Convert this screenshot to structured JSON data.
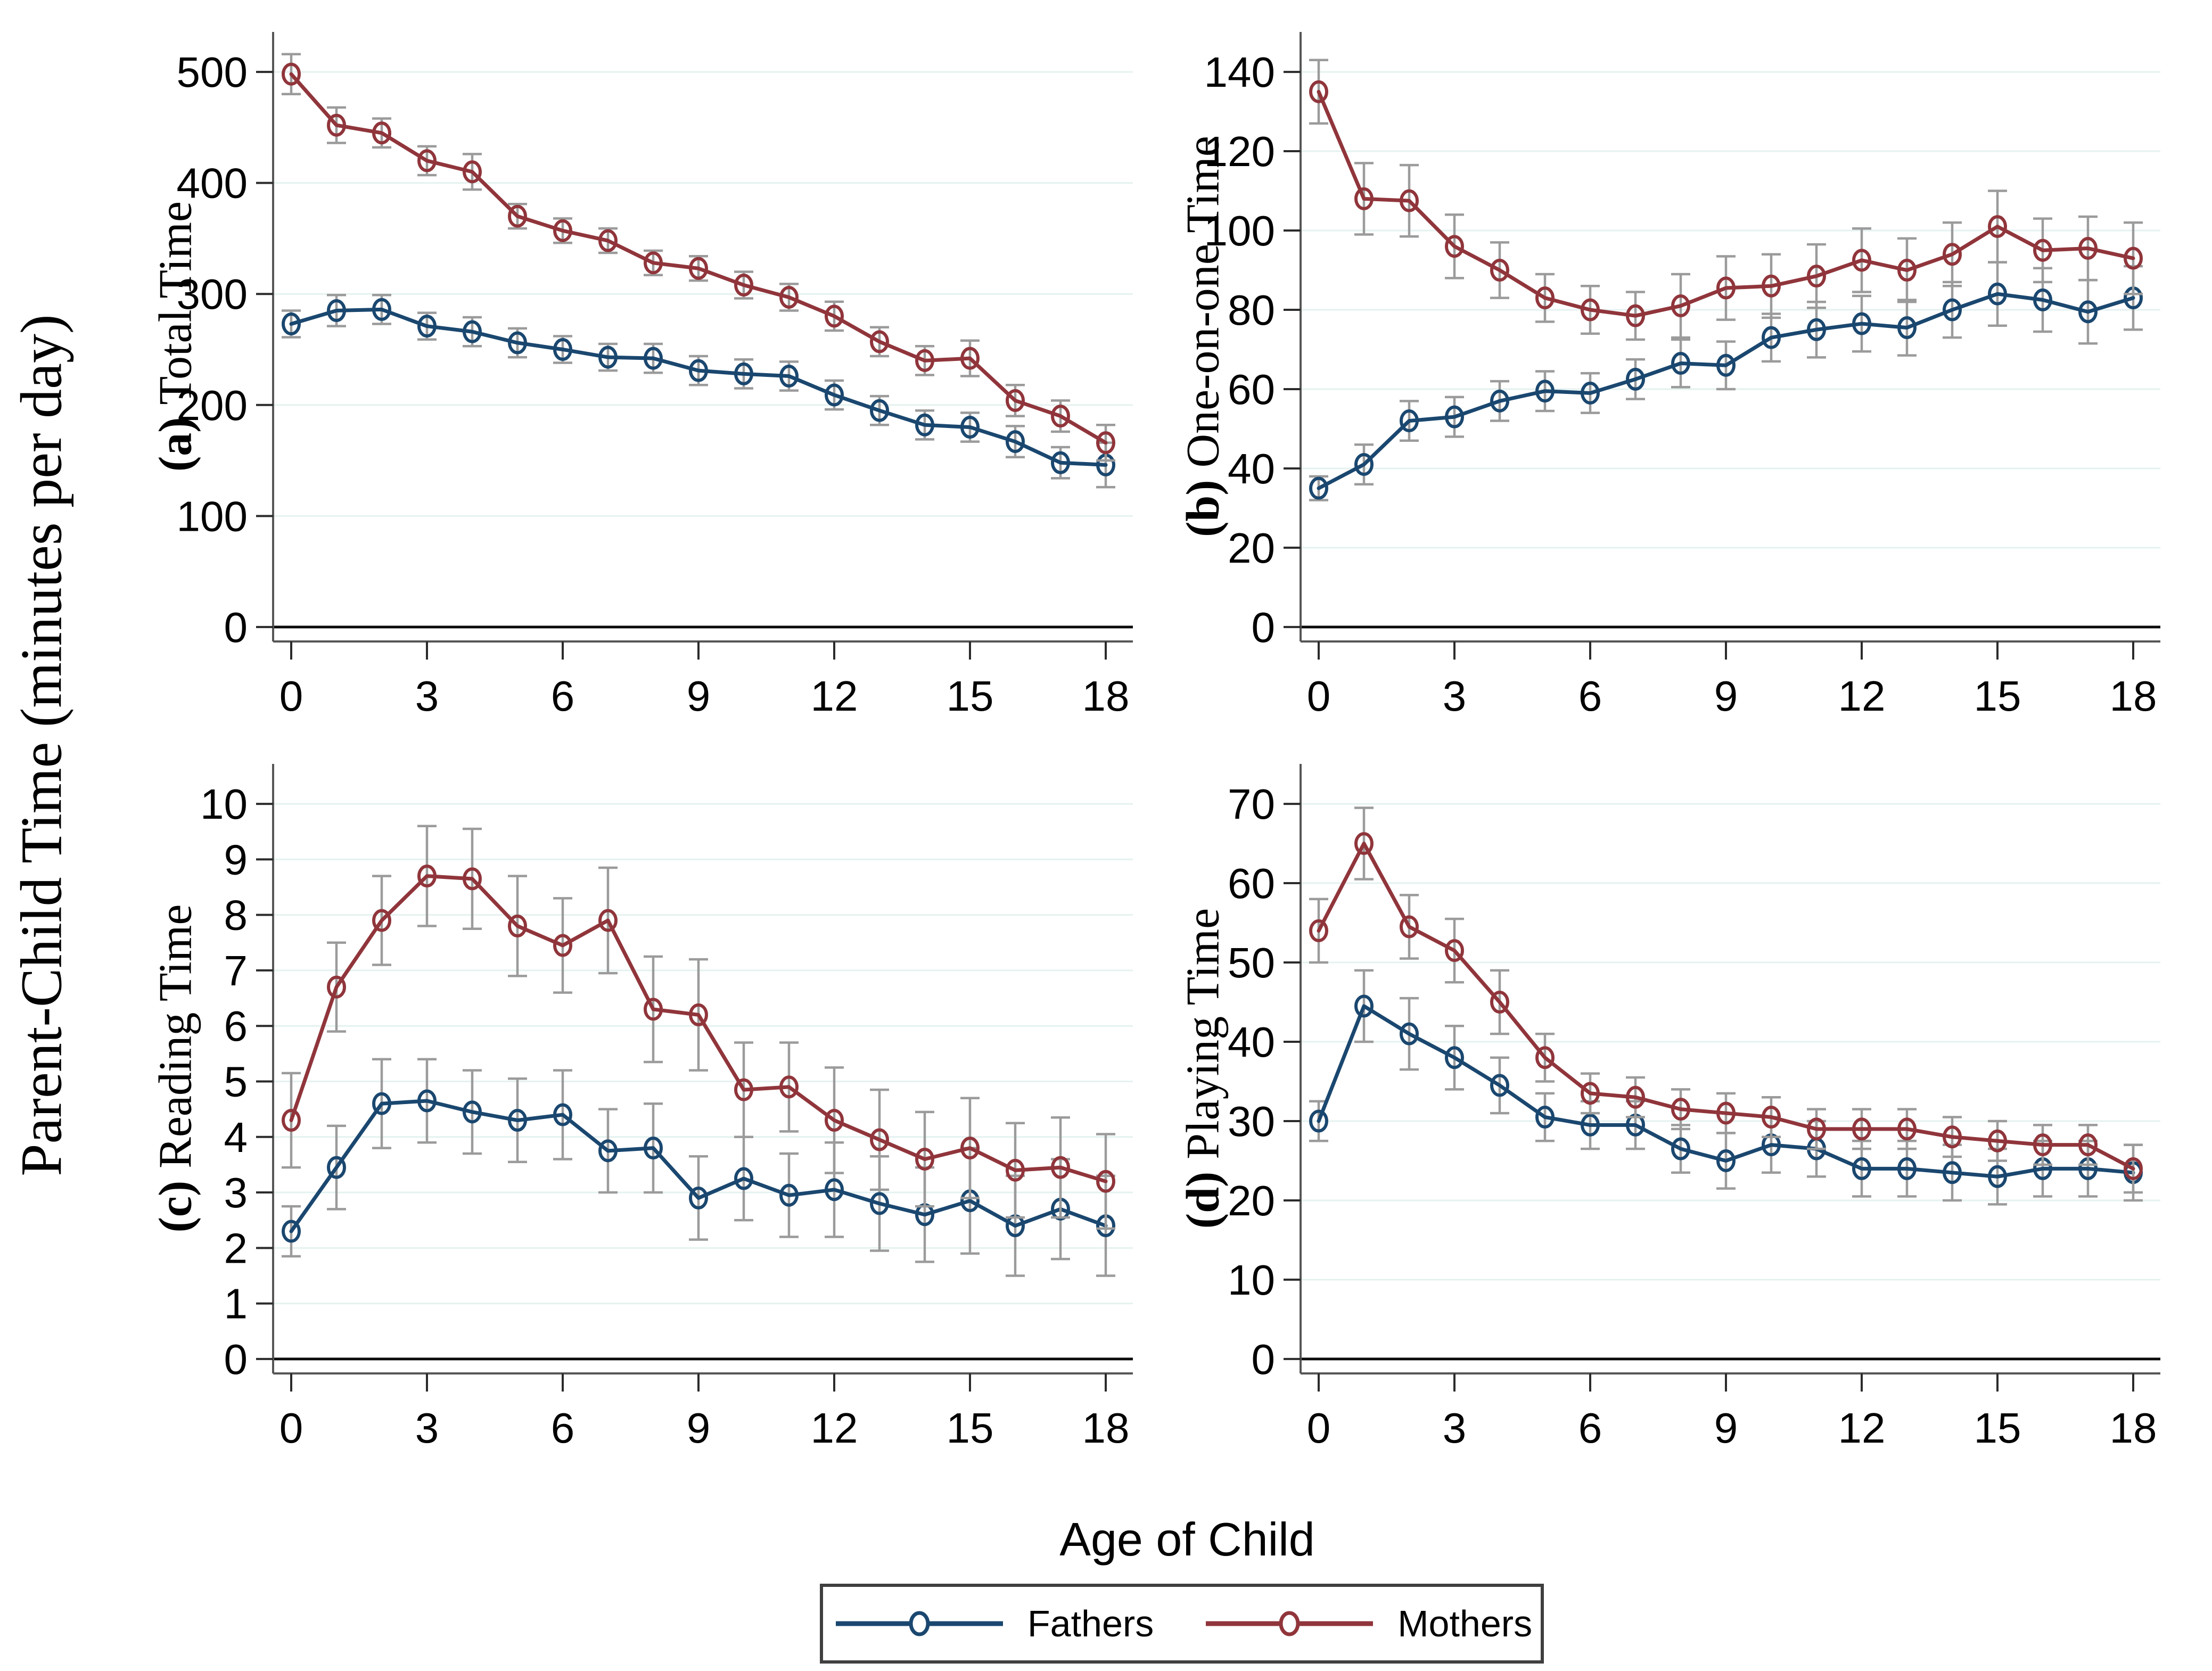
{
  "figure": {
    "ylabel": "Parent-Child Time (minutes per day)",
    "xlabel": "Age of Child"
  },
  "legend": {
    "items": [
      {
        "label": "Fathers",
        "color": "#1a476f"
      },
      {
        "label": "Mothers",
        "color": "#90353b"
      }
    ]
  },
  "colors": {
    "fathers": "#1a476f",
    "mothers": "#90353b",
    "error_bar": "#9b9b9b",
    "gridline": "#e4f2f0",
    "zero_line": "#0a0a0a",
    "axis": "#565656",
    "text": "#000000"
  },
  "icons": {
    "marker": "hollow-circle"
  },
  "chart_data": [
    {
      "type": "line",
      "panel_id": "a",
      "label_prefix": "(a)",
      "label": "Total Time",
      "x": [
        0,
        1,
        2,
        3,
        4,
        5,
        6,
        7,
        8,
        9,
        10,
        11,
        12,
        13,
        14,
        15,
        16,
        17,
        18
      ],
      "xticks": [
        0,
        3,
        6,
        9,
        12,
        15,
        18
      ],
      "yticks": [
        0,
        100,
        200,
        300,
        400,
        500
      ],
      "ylim": [
        0,
        500
      ],
      "grid": true,
      "series": [
        {
          "name": "Fathers",
          "color": "#1a476f",
          "values": [
            273,
            285,
            286,
            271,
            266,
            256,
            250,
            243,
            242,
            231,
            228,
            226,
            209,
            195,
            182,
            180,
            167,
            148,
            146
          ],
          "err": [
            12,
            14,
            13,
            12,
            13,
            13,
            12,
            12,
            13,
            13,
            13,
            13,
            13,
            13,
            13,
            13,
            14,
            14,
            20
          ]
        },
        {
          "name": "Mothers",
          "color": "#90353b",
          "values": [
            498,
            452,
            445,
            420,
            410,
            370,
            357,
            348,
            328,
            323,
            308,
            297,
            280,
            257,
            240,
            242,
            204,
            190,
            166
          ],
          "err": [
            18,
            16,
            13,
            13,
            16,
            11,
            11,
            11,
            11,
            11,
            12,
            12,
            13,
            13,
            13,
            16,
            14,
            14,
            16
          ]
        }
      ]
    },
    {
      "type": "line",
      "panel_id": "b",
      "label_prefix": "(b)",
      "label": "One-on-one Time",
      "x": [
        0,
        1,
        2,
        3,
        4,
        5,
        6,
        7,
        8,
        9,
        10,
        11,
        12,
        13,
        14,
        15,
        16,
        17,
        18
      ],
      "xticks": [
        0,
        3,
        6,
        9,
        12,
        15,
        18
      ],
      "yticks": [
        0,
        20,
        40,
        60,
        80,
        100,
        120,
        140
      ],
      "ylim": [
        0,
        140
      ],
      "grid": true,
      "series": [
        {
          "name": "Fathers",
          "color": "#1a476f",
          "values": [
            35,
            41,
            52,
            53,
            57,
            59.5,
            59,
            62.5,
            66.5,
            66,
            73,
            75,
            76.5,
            75.5,
            80,
            84,
            82.5,
            79.5,
            83
          ],
          "err": [
            3,
            5,
            5,
            5,
            5,
            5,
            5,
            5,
            6,
            6,
            6,
            7,
            7,
            7,
            7,
            8,
            8,
            8,
            8
          ]
        },
        {
          "name": "Mothers",
          "color": "#90353b",
          "values": [
            135,
            108,
            107.5,
            96,
            90,
            83,
            80,
            78.5,
            81,
            85.5,
            86,
            88.5,
            92.5,
            90,
            94,
            101,
            95,
            95.5,
            93
          ],
          "err": [
            8,
            9,
            9,
            8,
            7,
            6,
            6,
            6,
            8,
            8,
            8,
            8,
            8,
            8,
            8,
            9,
            8,
            8,
            9
          ]
        }
      ]
    },
    {
      "type": "line",
      "panel_id": "c",
      "label_prefix": "(c)",
      "label": "Reading Time",
      "x": [
        0,
        1,
        2,
        3,
        4,
        5,
        6,
        7,
        8,
        9,
        10,
        11,
        12,
        13,
        14,
        15,
        16,
        17,
        18
      ],
      "xticks": [
        0,
        3,
        6,
        9,
        12,
        15,
        18
      ],
      "yticks": [
        0,
        1,
        2,
        3,
        4,
        5,
        6,
        7,
        8,
        9,
        10
      ],
      "ylim": [
        0,
        10
      ],
      "grid": true,
      "series": [
        {
          "name": "Fathers",
          "color": "#1a476f",
          "values": [
            2.3,
            3.45,
            4.6,
            4.65,
            4.45,
            4.3,
            4.4,
            3.75,
            3.8,
            2.9,
            3.25,
            2.95,
            3.05,
            2.8,
            2.6,
            2.85,
            2.4,
            2.7,
            2.4
          ],
          "err": [
            0.45,
            0.75,
            0.8,
            0.75,
            0.75,
            0.75,
            0.8,
            0.75,
            0.8,
            0.75,
            0.75,
            0.75,
            0.85,
            0.85,
            0.85,
            0.95,
            0.9,
            0.9,
            0.9
          ]
        },
        {
          "name": "Mothers",
          "color": "#90353b",
          "values": [
            4.3,
            6.7,
            7.9,
            8.7,
            8.65,
            7.8,
            7.45,
            7.9,
            6.3,
            6.2,
            4.85,
            4.9,
            4.3,
            3.95,
            3.6,
            3.8,
            3.4,
            3.45,
            3.2
          ],
          "err": [
            0.85,
            0.8,
            0.8,
            0.9,
            0.9,
            0.9,
            0.85,
            0.95,
            0.95,
            1.0,
            0.85,
            0.8,
            0.95,
            0.9,
            0.85,
            0.9,
            0.85,
            0.9,
            0.85
          ]
        }
      ]
    },
    {
      "type": "line",
      "panel_id": "d",
      "label_prefix": "(d)",
      "label": "Playing Time",
      "x": [
        0,
        1,
        2,
        3,
        4,
        5,
        6,
        7,
        8,
        9,
        10,
        11,
        12,
        13,
        14,
        15,
        16,
        17,
        18
      ],
      "xticks": [
        0,
        3,
        6,
        9,
        12,
        15,
        18
      ],
      "yticks": [
        0,
        10,
        20,
        30,
        40,
        50,
        60,
        70
      ],
      "ylim": [
        0,
        70
      ],
      "grid": true,
      "series": [
        {
          "name": "Fathers",
          "color": "#1a476f",
          "values": [
            30,
            44.5,
            41,
            38,
            34.5,
            30.5,
            29.5,
            29.5,
            26.5,
            25,
            27,
            26.5,
            24,
            24,
            23.5,
            23,
            24,
            24,
            23.5
          ],
          "err": [
            2.5,
            4.5,
            4.5,
            4,
            3.5,
            3,
            3,
            3,
            3,
            3.5,
            3.5,
            3.5,
            3.5,
            3.5,
            3.5,
            3.5,
            3.5,
            3.5,
            3.5
          ]
        },
        {
          "name": "Mothers",
          "color": "#90353b",
          "values": [
            54,
            65,
            54.5,
            51.5,
            45,
            38,
            33.5,
            33,
            31.5,
            31,
            30.5,
            29,
            29,
            29,
            28,
            27.5,
            27,
            27,
            24
          ],
          "err": [
            4,
            4.5,
            4,
            4,
            4,
            3,
            2.5,
            2.5,
            2.5,
            2.5,
            2.5,
            2.5,
            2.5,
            2.5,
            2.5,
            2.5,
            2.5,
            2.5,
            3
          ]
        }
      ]
    }
  ]
}
